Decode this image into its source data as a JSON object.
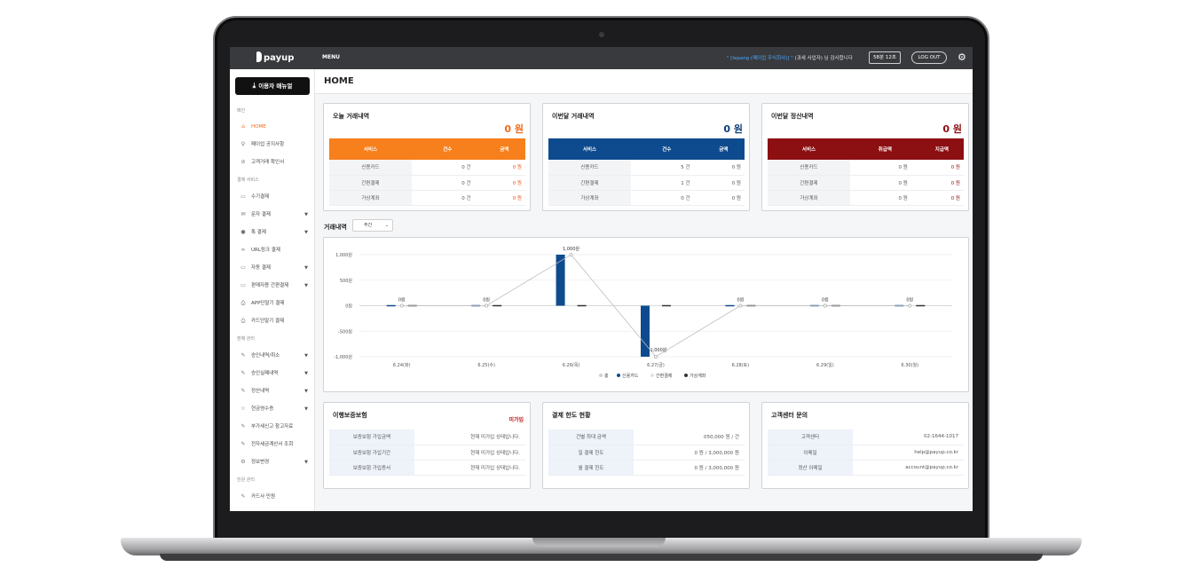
{
  "topbar": {
    "logo": "payup",
    "menu": "MENU",
    "greeting_company": "\" [lepang (페이업 주식회사)] \"",
    "greeting_rest": "(과세 사업자) 님 감사합니다",
    "timer": "58분 12초",
    "logout": "LOG OUT",
    "settings_icon": "gear-icon"
  },
  "sidebar": {
    "manual_button": "이용자 매뉴얼",
    "sections": [
      {
        "label": "메인"
      },
      {
        "label": "결제 서비스"
      },
      {
        "label": "판매 관리"
      },
      {
        "label": "민원 관리"
      }
    ],
    "items": [
      {
        "label": "HOME",
        "icon": "home-icon",
        "active": true
      },
      {
        "label": "페이업 공지사항",
        "icon": "megaphone-icon"
      },
      {
        "label": "고객거래 확인서",
        "icon": "check-circle-icon"
      },
      {
        "label": "수기결제",
        "icon": "card-icon"
      },
      {
        "label": "문자 결제",
        "icon": "mail-icon",
        "caret": true
      },
      {
        "label": "톡 결제",
        "icon": "chat-icon",
        "caret": true
      },
      {
        "label": "URL링크 결제",
        "icon": "link-icon"
      },
      {
        "label": "자동 결제",
        "icon": "card-icon",
        "caret": true
      },
      {
        "label": "판매자용 간편결제",
        "icon": "card-icon",
        "caret": true
      },
      {
        "label": "APP단말기 결제",
        "icon": "printer-icon"
      },
      {
        "label": "카드단말기 결제",
        "icon": "printer-icon"
      },
      {
        "label": "승인내역/취소",
        "icon": "edit-icon",
        "caret": true
      },
      {
        "label": "승인실패내역",
        "icon": "edit-icon",
        "caret": true
      },
      {
        "label": "정산내역",
        "icon": "edit-icon",
        "caret": true
      },
      {
        "label": "현금영수증",
        "icon": "star-icon",
        "caret": true
      },
      {
        "label": "부가세신고 참고자료",
        "icon": "edit-icon"
      },
      {
        "label": "전자세금계산서 조회",
        "icon": "edit-icon"
      },
      {
        "label": "정보변경",
        "icon": "gear-icon",
        "caret": true
      },
      {
        "label": "카드사 민원",
        "icon": "edit-icon"
      }
    ]
  },
  "page_title": "HOME",
  "summary_cards": [
    {
      "title": "오늘 거래내역",
      "total": "0 원",
      "accent": "#f77f1c",
      "total_color": "#f06a1a",
      "headers": [
        "서비스",
        "건수",
        "금액"
      ],
      "rows": [
        [
          "신용카드",
          "0 건",
          "0 원"
        ],
        [
          "간편결제",
          "0 건",
          "0 원"
        ],
        [
          "가상계좌",
          "0 건",
          "0 원"
        ]
      ]
    },
    {
      "title": "이번달 거래내역",
      "total": "0 원",
      "accent": "#0e4b8e",
      "total_color": "#0e3f7a",
      "headers": [
        "서비스",
        "건수",
        "금액"
      ],
      "rows": [
        [
          "신용카드",
          "5 건",
          "0 원"
        ],
        [
          "간편결제",
          "1 건",
          "0 원"
        ],
        [
          "가상계좌",
          "0 건",
          "0 원"
        ]
      ]
    },
    {
      "title": "이번달 정산내역",
      "total": "0 원",
      "accent": "#8c0f12",
      "total_color": "#8c0f12",
      "headers": [
        "서비스",
        "취급액",
        "지급액"
      ],
      "rows": [
        [
          "신용카드",
          "0 원",
          "0 원"
        ],
        [
          "간편결제",
          "0 원",
          "0 원"
        ],
        [
          "가상계좌",
          "0 원",
          "0 원"
        ]
      ]
    }
  ],
  "trend": {
    "label": "거래내역",
    "period": "주간"
  },
  "chart_data": {
    "type": "bar",
    "categories": [
      "6.24(화)",
      "6.25(수)",
      "6.26(목)",
      "6.27(금)",
      "6.28(토)",
      "6.29(일)",
      "6.30(월)"
    ],
    "ylim": [
      -1000,
      1000
    ],
    "yticks": [
      1000,
      500,
      0,
      -500,
      -1000
    ],
    "ytick_labels": [
      "1,000원",
      "500원",
      "0원",
      "-500원",
      "-1,000원"
    ],
    "series": [
      {
        "name": "총",
        "type": "line",
        "color": "#bdbdbd",
        "values": [
          0,
          0,
          1000,
          -1000,
          0,
          0,
          0
        ]
      },
      {
        "name": "신용카드",
        "color": "#0e4b8e",
        "values": [
          0,
          0,
          1000,
          -1000,
          0,
          0,
          0
        ]
      },
      {
        "name": "간편결제",
        "color": "#dfe3e8",
        "values": [
          0,
          0,
          0,
          0,
          0,
          0,
          0
        ]
      },
      {
        "name": "가상계좌",
        "color": "#333333",
        "values": [
          0,
          0,
          0,
          0,
          0,
          0,
          0
        ]
      }
    ],
    "data_labels": [
      "0원",
      "0원",
      "1,000원",
      "-1,000원",
      "0원",
      "0원",
      "0원"
    ]
  },
  "info_cards": [
    {
      "title": "이행보증보험",
      "badge": "미가입",
      "rows": [
        [
          "보증보험 가입금액",
          "현재 미가입 상태입니다."
        ],
        [
          "보증보험 가입기간",
          "현재 미가입 상태입니다."
        ],
        [
          "보증보험 가입증서",
          "현재 미가입 상태입니다."
        ]
      ]
    },
    {
      "title": "결제 한도 현황",
      "badge": "",
      "rows": [
        [
          "건별 최대 금액",
          "050,000 원 / 건"
        ],
        [
          "일 결제 한도",
          "0 원 / 3,000,000 원"
        ],
        [
          "월 결제 한도",
          "0 원 / 3,000,000 원"
        ]
      ]
    },
    {
      "title": "고객센터 문의",
      "badge": "",
      "rows": [
        [
          "고객센터",
          "02-1644-1017"
        ],
        [
          "이메일",
          "help@payup.co.kr"
        ],
        [
          "정산 이메일",
          "account@payup.co.kr"
        ]
      ]
    }
  ]
}
